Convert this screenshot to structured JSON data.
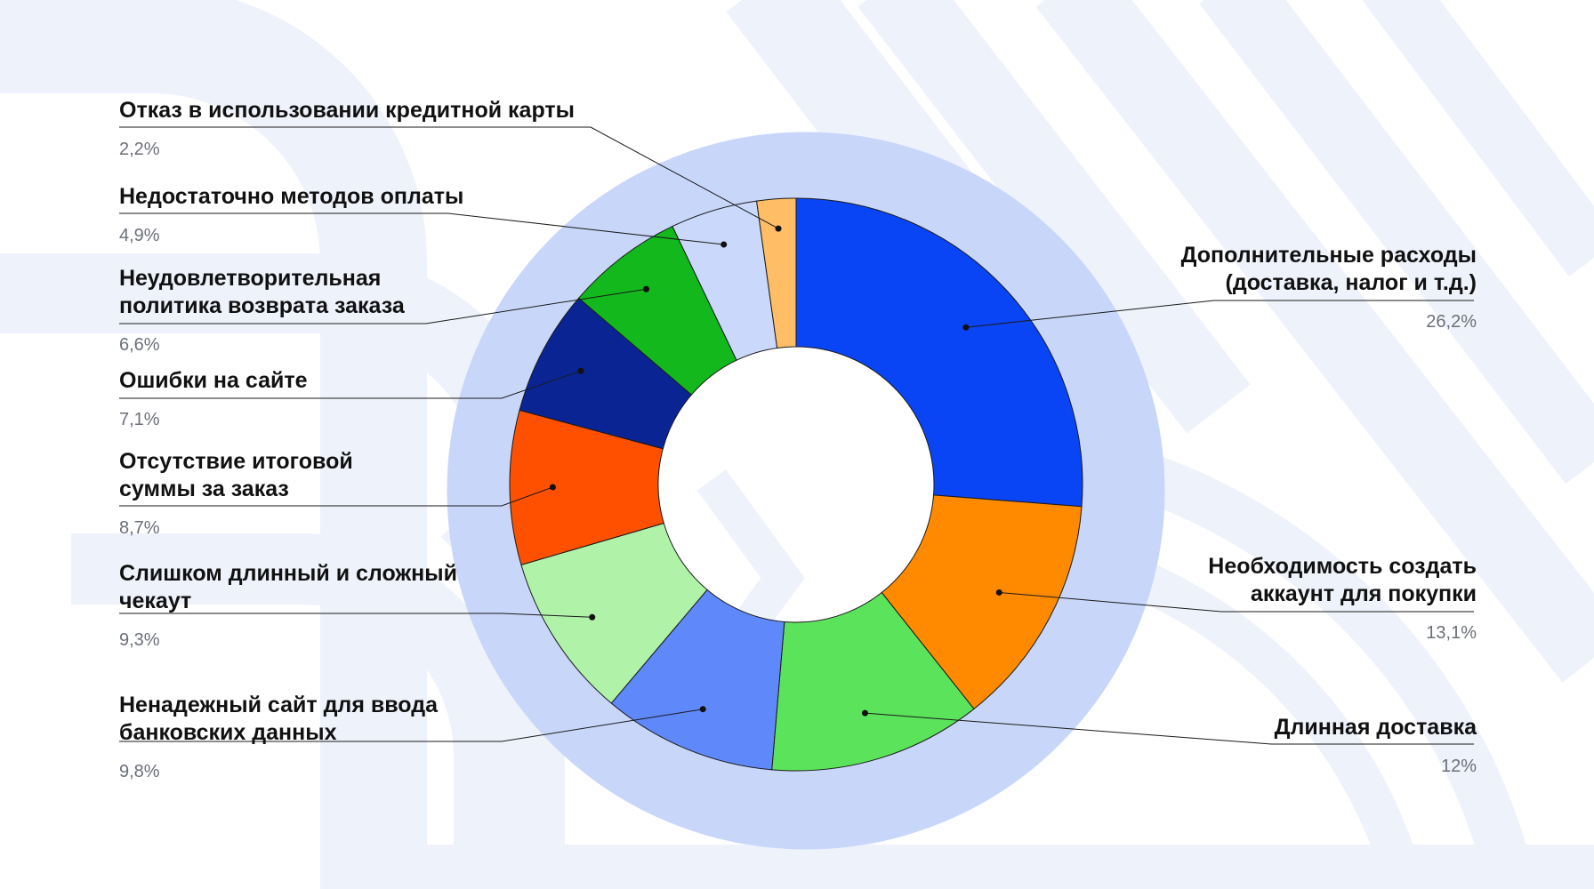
{
  "chart_data": {
    "type": "pie",
    "variant": "donut",
    "title": "",
    "start_angle": "12 o'clock, clockwise",
    "categories": [
      "Дополнительные расходы (доставка, налог и т.д.)",
      "Необходимость создать аккаунт для покупки",
      "Длинная доставка",
      "Ненадежный сайт для ввода банковских данных",
      "Слишком длинный и сложный чекаут",
      "Отсутствие итоговой суммы за заказ",
      "Ошибки на сайте",
      "Неудовлетворительная политика возврата заказа",
      "Недостаточно методов оплаты",
      "Отказ в использовании кредитной карты"
    ],
    "values": [
      26.2,
      13.1,
      12,
      9.8,
      9.3,
      8.7,
      7.1,
      6.6,
      4.9,
      2.2
    ],
    "value_labels": [
      "26,2%",
      "13,1%",
      "12%",
      "9,8%",
      "9,3%",
      "8,7%",
      "7,1%",
      "6,6%",
      "4,9%",
      "2,2%"
    ],
    "colors": [
      "#0a45f5",
      "#ff8a00",
      "#5ce35c",
      "#5f88fa",
      "#b0f2a8",
      "#ff5000",
      "#0a2494",
      "#12b81c",
      "#c9d8fb",
      "#ffbe66"
    ],
    "label_lines": [
      [
        "Дополнительные расходы",
        "(доставка, налог и т.д.)"
      ],
      [
        "Необходимость создать",
        "аккаунт для покупки"
      ],
      [
        "Длинная доставка"
      ],
      [
        "Ненадежный сайт для ввода",
        "банковских данных"
      ],
      [
        "Слишком длинный и сложный",
        "чекаут"
      ],
      [
        "Отсутствие итоговой",
        "суммы за заказ"
      ],
      [
        "Ошибки на сайте"
      ],
      [
        "Неудовлетворительная",
        "политика возврата заказа"
      ],
      [
        "Недостаточно методов оплаты"
      ],
      [
        "Отказ в использовании кредитной карты"
      ]
    ],
    "legend": "none; callout labels with leader lines",
    "shadow_color": "#c8d6fa"
  },
  "theme": {
    "background": "#ffffff",
    "decor_color": "#eef2fb",
    "leader_color": "#1a1a1a",
    "percent_color": "#6b6f78"
  }
}
